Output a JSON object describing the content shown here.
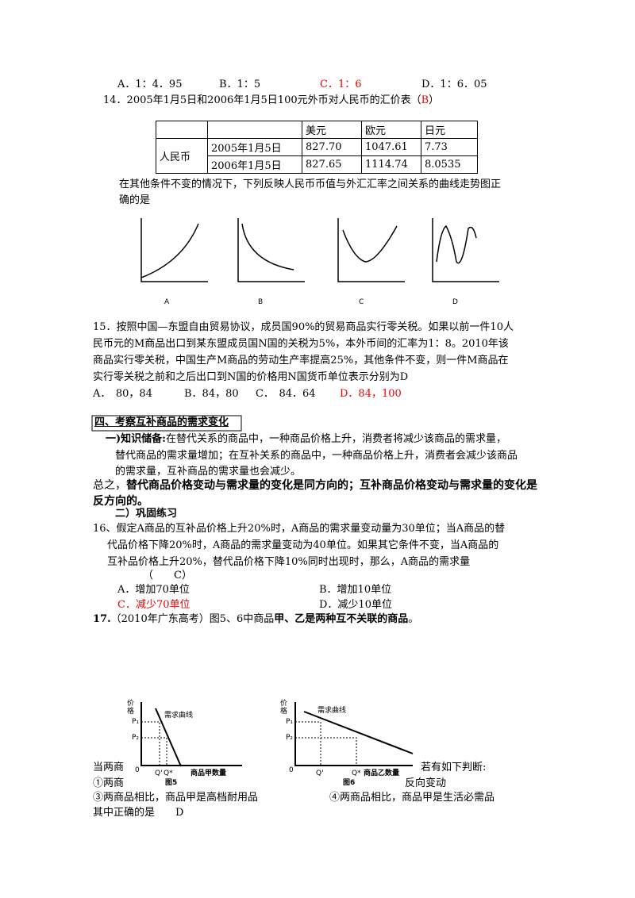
{
  "q13": {
    "options": [
      "A．1：4．95",
      "B．1：5",
      "C．1：6",
      "D．1：6．05"
    ]
  },
  "q14": {
    "stem": "14．2005年1月5日和2006年1月5日100元外币对人民币的汇价表（",
    "answer": "B",
    "stem_end": "）",
    "table": {
      "header": [
        "美元",
        "欧元",
        "日元"
      ],
      "row_label": "人民币",
      "rows": [
        [
          "2005年1月5日",
          "827.70",
          "1047.61",
          "7.73"
        ],
        [
          "2006年1月5日",
          "827.65",
          "1114.74",
          "8.0535"
        ]
      ]
    },
    "question": [
      "在其他条件不变的情况下，下列反映人民币币值与外汇汇率之间关系的曲线走势图正",
      "确的是"
    ],
    "graph_labels": [
      "A",
      "B",
      "C",
      "D"
    ]
  },
  "q15": {
    "lines": [
      "15．按照中国—东盟自由贸易协议，成员国90%的贸易商品实行零关税。如果以前一件10人",
      "民币元的M商品出口到某东盟成员国N国的关税为5%，本外币间的汇率为1：8。2010年该",
      "商品实行零关税，中国生产M商品的劳动生产率提高25%，其他条件不变，则一件M商品在",
      "实行零关税之前和之后出口到N国的价格用N国货币单位表示分别为D"
    ],
    "options": [
      "A．　80，84",
      "B．84，80",
      "C．　84．64",
      "D．84，100"
    ]
  },
  "section4": {
    "heading": "四、考察互补商品的需求变化",
    "knowledge_label": "一)知识储备:",
    "knowledge": [
      "在替代关系的商品中，一种商品价格上升，消费者将减少该商品的需求量，",
      "替代商品的需求量增加；在互补关系的商品中，一种商品价格上升，消费者会减少该商品",
      "的需求量，互补商品的需求量也会减少。"
    ],
    "summary_prefix": "总之，",
    "summary": [
      "替代商品价格变动与需求量的变化是同方向的；互补商品价格变动与需求量的变化是",
      "反方向的。"
    ],
    "practice": "二）巩固练习"
  },
  "q16": {
    "lines": [
      "16、假定A商品的互补品价格上升20%时，A商品的需求量变动量为30单位；当A商品的替",
      "代品价格下降20%时，A商品的需求量变动为40单位。如果其它条件不变，当A商品的",
      "互补品价格上升20%，替代品价格下降10%同时出现时，那么，A商品的需求量",
      "（　　C）"
    ],
    "options": [
      "A．增加70单位",
      "B．增加10单位",
      "C．减少70单位",
      "D．减少10单位"
    ]
  },
  "q17": {
    "number": "17.",
    "stem": "（2010年广东高考）图5、6中商品",
    "bold": "甲、乙是两种互不关联的商品",
    "end": "。",
    "fig5": {
      "y_label": "价格",
      "curve": "需求曲线",
      "p1": "P₁",
      "p2": "P₂",
      "origin": "0",
      "q1": "Q'",
      "q2": "Q*",
      "x_label": "商品甲数量",
      "caption": "图5"
    },
    "fig6": {
      "y_label": "价格",
      "curve": "需求曲线",
      "p1": "P₁",
      "p2": "P₂",
      "origin": "0",
      "q1": "Q'",
      "q2": "Q*",
      "x_label": "商品乙数量",
      "caption": "图6"
    },
    "fragments": [
      "当两商",
      "若有如下判断:",
      "①两商",
      "反向变动"
    ],
    "judgements": [
      "③两商品相比，商品甲是高档耐用品",
      "④两商品相比，商品甲是生活必需品"
    ],
    "conclusion": "其中正确的是　　D"
  }
}
